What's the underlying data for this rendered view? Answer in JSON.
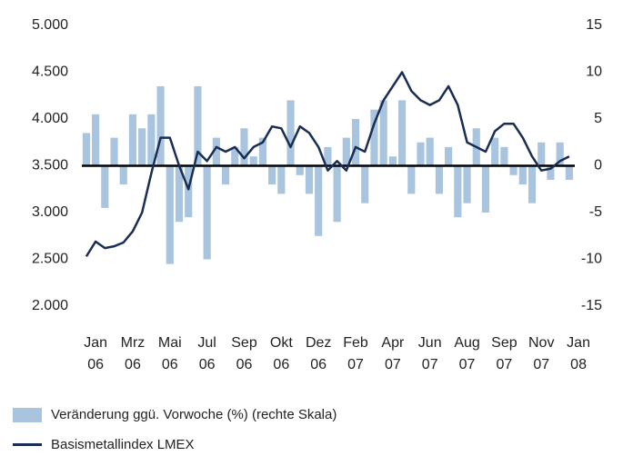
{
  "chart_data": {
    "type": "bar",
    "x": [
      -0.25,
      0,
      0.25,
      0.5,
      0.75,
      1,
      1.25,
      1.5,
      1.75,
      2,
      2.25,
      2.5,
      2.75,
      3,
      3.25,
      3.5,
      3.75,
      4,
      4.25,
      4.5,
      4.75,
      5,
      5.25,
      5.5,
      5.75,
      6,
      6.25,
      6.5,
      6.75,
      7,
      7.25,
      7.5,
      7.75,
      8,
      8.25,
      8.5,
      8.75,
      9,
      9.25,
      9.5,
      9.75,
      10,
      10.25,
      10.5,
      10.75,
      11,
      11.25,
      11.5,
      11.75,
      12,
      12.25,
      12.5,
      12.75
    ],
    "xlim": [
      -0.37,
      12.9
    ],
    "xticks": [
      {
        "value": 0,
        "label": "Jan 06"
      },
      {
        "value": 1,
        "label": "Mrz 06"
      },
      {
        "value": 2,
        "label": "Mai 06"
      },
      {
        "value": 3,
        "label": "Jul 06"
      },
      {
        "value": 4,
        "label": "Sep 06"
      },
      {
        "value": 5,
        "label": "Okt 06"
      },
      {
        "value": 6,
        "label": "Dez 06"
      },
      {
        "value": 7,
        "label": "Feb 07"
      },
      {
        "value": 8,
        "label": "Apr 07"
      },
      {
        "value": 9,
        "label": "Jun 07"
      },
      {
        "value": 10,
        "label": "Aug 07"
      },
      {
        "value": 11,
        "label": "Sep 07"
      },
      {
        "value": 12,
        "label": "Nov 07"
      },
      {
        "value": 13,
        "label": "Jan 08"
      }
    ],
    "ylim": [
      2000,
      5000
    ],
    "yticks": [
      {
        "value": 2000,
        "label": "2.000"
      },
      {
        "value": 2500,
        "label": "2.500"
      },
      {
        "value": 3000,
        "label": "3.000"
      },
      {
        "value": 3500,
        "label": "3.500"
      },
      {
        "value": 4000,
        "label": "4.000"
      },
      {
        "value": 4500,
        "label": "4.500"
      },
      {
        "value": 5000,
        "label": "5.000"
      }
    ],
    "y2lim": [
      -15,
      15
    ],
    "y2ticks": [
      -15,
      -10,
      -5,
      0,
      5,
      10,
      15
    ],
    "series": [
      {
        "name": "Veränderung ggü. Vorwoche (%) (rechte Skala)",
        "type": "bar",
        "axis": "y2",
        "color": "#a9c4de",
        "values": [
          3.5,
          5.5,
          -4.5,
          3,
          -2,
          5.5,
          4,
          5.5,
          8.5,
          -10.5,
          -6,
          -5.5,
          8.5,
          -10,
          3,
          -2,
          2,
          4,
          1,
          3,
          -2,
          -3,
          7,
          -1,
          -3,
          -7.5,
          2,
          -6,
          3,
          5,
          -4,
          6,
          7,
          1,
          7,
          -3,
          2.5,
          3,
          -3,
          2,
          -5.5,
          -4,
          4,
          -5,
          3,
          2,
          -1,
          -2,
          -4,
          2.5,
          -1.5,
          2.5,
          -1.5
        ]
      },
      {
        "name": "Basismetallindex LMEX",
        "type": "line",
        "color": "#1a2d55",
        "values": [
          2530,
          2690,
          2620,
          2640,
          2680,
          2800,
          3000,
          3420,
          3800,
          3800,
          3500,
          3250,
          3650,
          3550,
          3700,
          3650,
          3700,
          3580,
          3700,
          3750,
          3920,
          3900,
          3700,
          3920,
          3850,
          3700,
          3450,
          3550,
          3450,
          3700,
          3650,
          3950,
          4200,
          4350,
          4500,
          4300,
          4200,
          4150,
          4200,
          4350,
          4150,
          3750,
          3700,
          3650,
          3870,
          3950,
          3950,
          3800,
          3600,
          3450,
          3470,
          3550,
          3600
        ]
      }
    ]
  }
}
